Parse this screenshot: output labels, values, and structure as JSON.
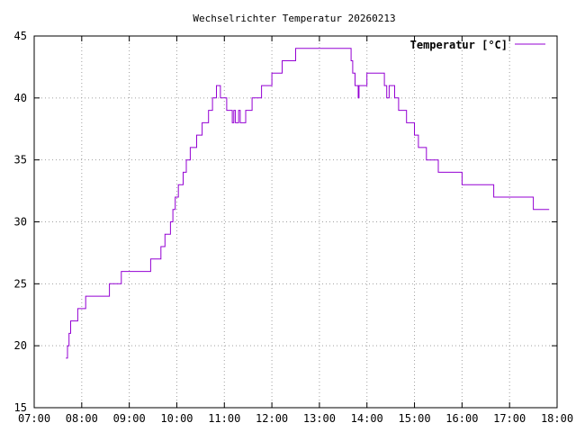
{
  "chart_data": {
    "type": "line",
    "title": "Wechselrichter Temperatur 20260213",
    "xlabel": "",
    "ylabel": "",
    "xlim": [
      "07:00",
      "18:00"
    ],
    "ylim": [
      15,
      45
    ],
    "x_ticks": [
      "07:00",
      "08:00",
      "09:00",
      "10:00",
      "11:00",
      "12:00",
      "13:00",
      "14:00",
      "15:00",
      "16:00",
      "17:00",
      "18:00"
    ],
    "y_ticks": [
      "15",
      "20",
      "25",
      "30",
      "35",
      "40",
      "45"
    ],
    "grid": true,
    "legend": {
      "position": "top-right",
      "entries": [
        "Temperatur [°C]"
      ]
    },
    "series": [
      {
        "name": "Temperatur [°C]",
        "color": "#9400d3",
        "step": true,
        "x": [
          "07:40",
          "07:42",
          "07:44",
          "07:46",
          "07:50",
          "07:55",
          "08:05",
          "08:20",
          "08:35",
          "08:50",
          "09:20",
          "09:27",
          "09:35",
          "09:40",
          "09:45",
          "09:48",
          "09:52",
          "09:55",
          "09:58",
          "10:02",
          "10:05",
          "10:08",
          "10:12",
          "10:17",
          "10:25",
          "10:32",
          "10:40",
          "10:45",
          "10:50",
          "10:55",
          "11:03",
          "11:10",
          "11:12",
          "11:14",
          "11:18",
          "11:20",
          "11:23",
          "11:27",
          "11:35",
          "11:47",
          "11:55",
          "12:00",
          "12:10",
          "12:13",
          "12:17",
          "12:30",
          "13:40",
          "13:42",
          "13:45",
          "13:49",
          "13:50",
          "14:00",
          "14:20",
          "14:22",
          "14:25",
          "14:28",
          "14:30",
          "14:35",
          "14:40",
          "14:50",
          "15:00",
          "15:05",
          "15:15",
          "15:30",
          "16:00",
          "16:40",
          "17:30",
          "17:50"
        ],
        "values": [
          19,
          20,
          21,
          22,
          22,
          23,
          24,
          24,
          25,
          26,
          26,
          27,
          27,
          28,
          29,
          29,
          30,
          31,
          32,
          33,
          33,
          34,
          35,
          36,
          37,
          38,
          39,
          40,
          41,
          40,
          39,
          38,
          39,
          38,
          39,
          38,
          38,
          39,
          40,
          41,
          41,
          42,
          42,
          43,
          43,
          44,
          43,
          42,
          41,
          40,
          41,
          42,
          42,
          41,
          40,
          41,
          41,
          40,
          39,
          38,
          37,
          36,
          35,
          34,
          33,
          32,
          31,
          31
        ]
      }
    ]
  }
}
